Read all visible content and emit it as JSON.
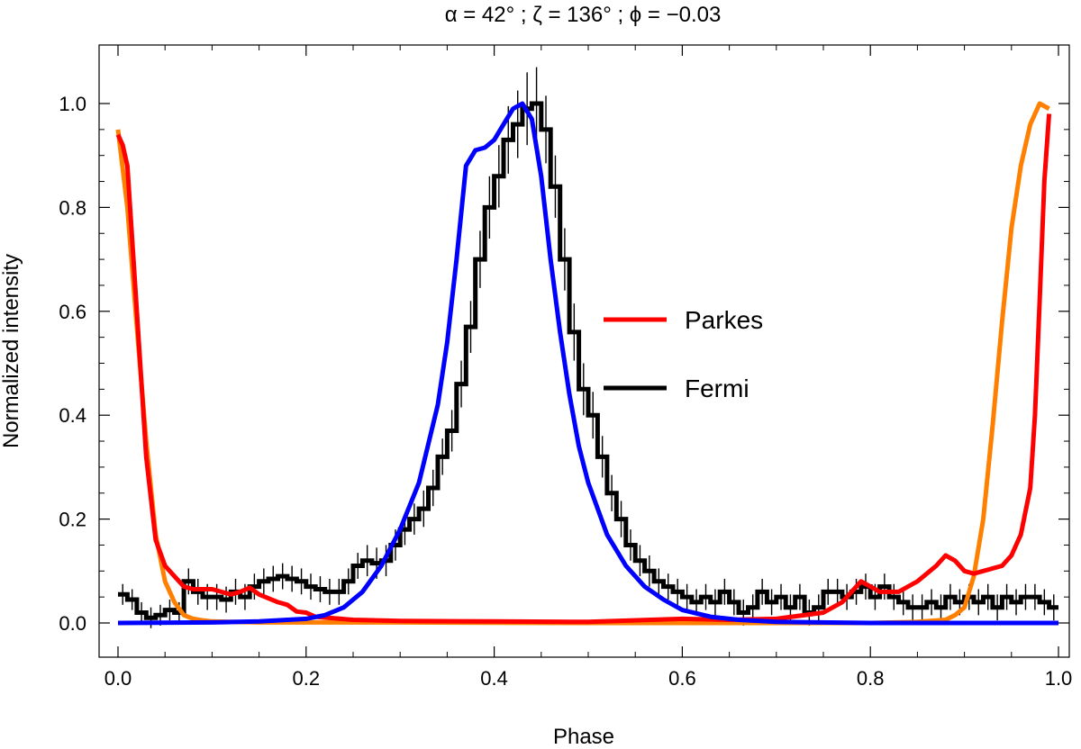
{
  "chart_data": {
    "type": "line",
    "title": "α = 42° ; ζ = 136° ; ϕ = −0.03",
    "xlabel": "Phase",
    "ylabel": "Normalized intensity",
    "xlim": [
      -0.02,
      1.02
    ],
    "ylim": [
      -0.065,
      1.1
    ],
    "xticks": [
      0.0,
      0.2,
      0.4,
      0.6,
      0.8,
      1.0
    ],
    "yticks": [
      0.0,
      0.2,
      0.4,
      0.6,
      0.8,
      1.0
    ],
    "xtick_labels": [
      "0.0",
      "0.2",
      "0.4",
      "0.6",
      "0.8",
      "1.0"
    ],
    "ytick_labels": [
      "0.0",
      "0.2",
      "0.4",
      "0.6",
      "0.8",
      "1.0"
    ],
    "grid": false,
    "legend": {
      "placement": "center-right",
      "entries": [
        {
          "name": "Parkes",
          "color": "#ff0000"
        },
        {
          "name": "Fermi",
          "color": "#000000"
        }
      ]
    },
    "series": [
      {
        "name": "Fermi",
        "style": "histogram-errorbars",
        "color": "#000000",
        "x": [
          0.0,
          0.01,
          0.02,
          0.03,
          0.04,
          0.05,
          0.06,
          0.07,
          0.08,
          0.09,
          0.1,
          0.11,
          0.12,
          0.13,
          0.14,
          0.15,
          0.16,
          0.17,
          0.18,
          0.19,
          0.2,
          0.21,
          0.22,
          0.23,
          0.24,
          0.25,
          0.26,
          0.27,
          0.28,
          0.29,
          0.3,
          0.31,
          0.32,
          0.33,
          0.34,
          0.35,
          0.36,
          0.37,
          0.38,
          0.39,
          0.4,
          0.41,
          0.42,
          0.43,
          0.44,
          0.45,
          0.46,
          0.47,
          0.48,
          0.49,
          0.5,
          0.51,
          0.52,
          0.53,
          0.54,
          0.55,
          0.56,
          0.57,
          0.58,
          0.59,
          0.6,
          0.61,
          0.62,
          0.63,
          0.64,
          0.65,
          0.66,
          0.67,
          0.68,
          0.69,
          0.7,
          0.71,
          0.72,
          0.73,
          0.74,
          0.75,
          0.76,
          0.77,
          0.78,
          0.79,
          0.8,
          0.81,
          0.82,
          0.83,
          0.84,
          0.85,
          0.86,
          0.87,
          0.88,
          0.89,
          0.9,
          0.91,
          0.92,
          0.93,
          0.94,
          0.95,
          0.96,
          0.97,
          0.98,
          0.99
        ],
        "values": [
          0.055,
          0.045,
          0.02,
          0.01,
          0.015,
          0.025,
          0.02,
          0.08,
          0.06,
          0.05,
          0.05,
          0.045,
          0.06,
          0.05,
          0.07,
          0.08,
          0.085,
          0.09,
          0.085,
          0.08,
          0.07,
          0.065,
          0.06,
          0.06,
          0.08,
          0.11,
          0.12,
          0.115,
          0.12,
          0.15,
          0.18,
          0.2,
          0.22,
          0.26,
          0.32,
          0.37,
          0.46,
          0.57,
          0.7,
          0.8,
          0.86,
          0.93,
          0.96,
          0.99,
          1.0,
          0.95,
          0.84,
          0.7,
          0.56,
          0.45,
          0.4,
          0.32,
          0.25,
          0.2,
          0.15,
          0.12,
          0.1,
          0.08,
          0.07,
          0.06,
          0.05,
          0.04,
          0.05,
          0.04,
          0.06,
          0.04,
          0.02,
          0.03,
          0.06,
          0.04,
          0.05,
          0.03,
          0.05,
          0.02,
          0.03,
          0.06,
          0.06,
          0.05,
          0.06,
          0.07,
          0.05,
          0.07,
          0.05,
          0.04,
          0.03,
          0.03,
          0.04,
          0.03,
          0.05,
          0.04,
          0.05,
          0.04,
          0.05,
          0.03,
          0.05,
          0.04,
          0.05,
          0.05,
          0.04,
          0.03
        ],
        "errors": [
          0.02,
          0.02,
          0.02,
          0.02,
          0.02,
          0.02,
          0.02,
          0.025,
          0.025,
          0.025,
          0.025,
          0.025,
          0.025,
          0.025,
          0.025,
          0.025,
          0.025,
          0.025,
          0.025,
          0.025,
          0.025,
          0.025,
          0.025,
          0.025,
          0.025,
          0.025,
          0.03,
          0.03,
          0.03,
          0.03,
          0.03,
          0.03,
          0.035,
          0.035,
          0.035,
          0.04,
          0.045,
          0.05,
          0.055,
          0.06,
          0.06,
          0.065,
          0.065,
          0.07,
          0.07,
          0.065,
          0.06,
          0.06,
          0.055,
          0.05,
          0.045,
          0.04,
          0.035,
          0.035,
          0.03,
          0.03,
          0.03,
          0.025,
          0.025,
          0.025,
          0.025,
          0.025,
          0.025,
          0.025,
          0.025,
          0.025,
          0.025,
          0.025,
          0.025,
          0.025,
          0.025,
          0.025,
          0.025,
          0.025,
          0.025,
          0.025,
          0.025,
          0.025,
          0.025,
          0.025,
          0.025,
          0.025,
          0.025,
          0.025,
          0.025,
          0.025,
          0.025,
          0.025,
          0.025,
          0.025,
          0.025,
          0.025,
          0.025,
          0.025,
          0.025,
          0.025,
          0.025,
          0.025,
          0.025,
          0.025
        ]
      },
      {
        "name": "Parkes",
        "style": "line",
        "color": "#ff0000",
        "x": [
          0.0,
          0.005,
          0.01,
          0.02,
          0.03,
          0.04,
          0.05,
          0.06,
          0.07,
          0.08,
          0.1,
          0.12,
          0.13,
          0.14,
          0.15,
          0.17,
          0.18,
          0.19,
          0.2,
          0.21,
          0.25,
          0.3,
          0.4,
          0.5,
          0.6,
          0.65,
          0.7,
          0.75,
          0.77,
          0.78,
          0.79,
          0.8,
          0.81,
          0.83,
          0.85,
          0.87,
          0.88,
          0.89,
          0.9,
          0.91,
          0.92,
          0.94,
          0.95,
          0.96,
          0.97,
          0.975,
          0.98,
          0.985,
          0.99
        ],
        "values": [
          0.94,
          0.92,
          0.88,
          0.6,
          0.32,
          0.16,
          0.11,
          0.09,
          0.07,
          0.065,
          0.065,
          0.055,
          0.06,
          0.068,
          0.055,
          0.04,
          0.035,
          0.022,
          0.02,
          0.012,
          0.006,
          0.004,
          0.003,
          0.002,
          0.008,
          0.006,
          0.008,
          0.02,
          0.04,
          0.06,
          0.08,
          0.07,
          0.06,
          0.06,
          0.08,
          0.11,
          0.13,
          0.12,
          0.1,
          0.095,
          0.1,
          0.11,
          0.13,
          0.17,
          0.26,
          0.4,
          0.62,
          0.85,
          0.98
        ]
      },
      {
        "name": "",
        "style": "line",
        "color": "#ff8000",
        "x": [
          0.0,
          0.01,
          0.02,
          0.03,
          0.04,
          0.05,
          0.06,
          0.07,
          0.08,
          0.09,
          0.1,
          0.12,
          0.15,
          0.2,
          0.3,
          0.5,
          0.7,
          0.8,
          0.85,
          0.88,
          0.89,
          0.9,
          0.91,
          0.92,
          0.93,
          0.94,
          0.95,
          0.96,
          0.97,
          0.98,
          0.99
        ],
        "values": [
          0.95,
          0.8,
          0.57,
          0.35,
          0.17,
          0.08,
          0.04,
          0.015,
          0.008,
          0.005,
          0.003,
          0.002,
          0.001,
          0.001,
          0.001,
          0.0,
          0.0,
          0.0,
          0.002,
          0.006,
          0.015,
          0.03,
          0.09,
          0.2,
          0.38,
          0.58,
          0.76,
          0.88,
          0.96,
          1.0,
          0.99
        ]
      },
      {
        "name": "",
        "style": "line",
        "color": "#0000ff",
        "x": [
          0.0,
          0.1,
          0.15,
          0.2,
          0.22,
          0.24,
          0.26,
          0.28,
          0.3,
          0.32,
          0.34,
          0.35,
          0.36,
          0.37,
          0.38,
          0.39,
          0.4,
          0.41,
          0.42,
          0.43,
          0.44,
          0.45,
          0.46,
          0.47,
          0.48,
          0.49,
          0.5,
          0.52,
          0.54,
          0.56,
          0.58,
          0.6,
          0.63,
          0.66,
          0.7,
          0.8,
          1.0
        ],
        "values": [
          0.0,
          0.001,
          0.003,
          0.008,
          0.015,
          0.03,
          0.06,
          0.11,
          0.18,
          0.27,
          0.42,
          0.54,
          0.7,
          0.88,
          0.91,
          0.915,
          0.93,
          0.96,
          0.99,
          1.0,
          0.97,
          0.86,
          0.7,
          0.56,
          0.44,
          0.34,
          0.27,
          0.17,
          0.11,
          0.07,
          0.045,
          0.025,
          0.012,
          0.006,
          0.002,
          0.0,
          0.0
        ]
      }
    ]
  }
}
